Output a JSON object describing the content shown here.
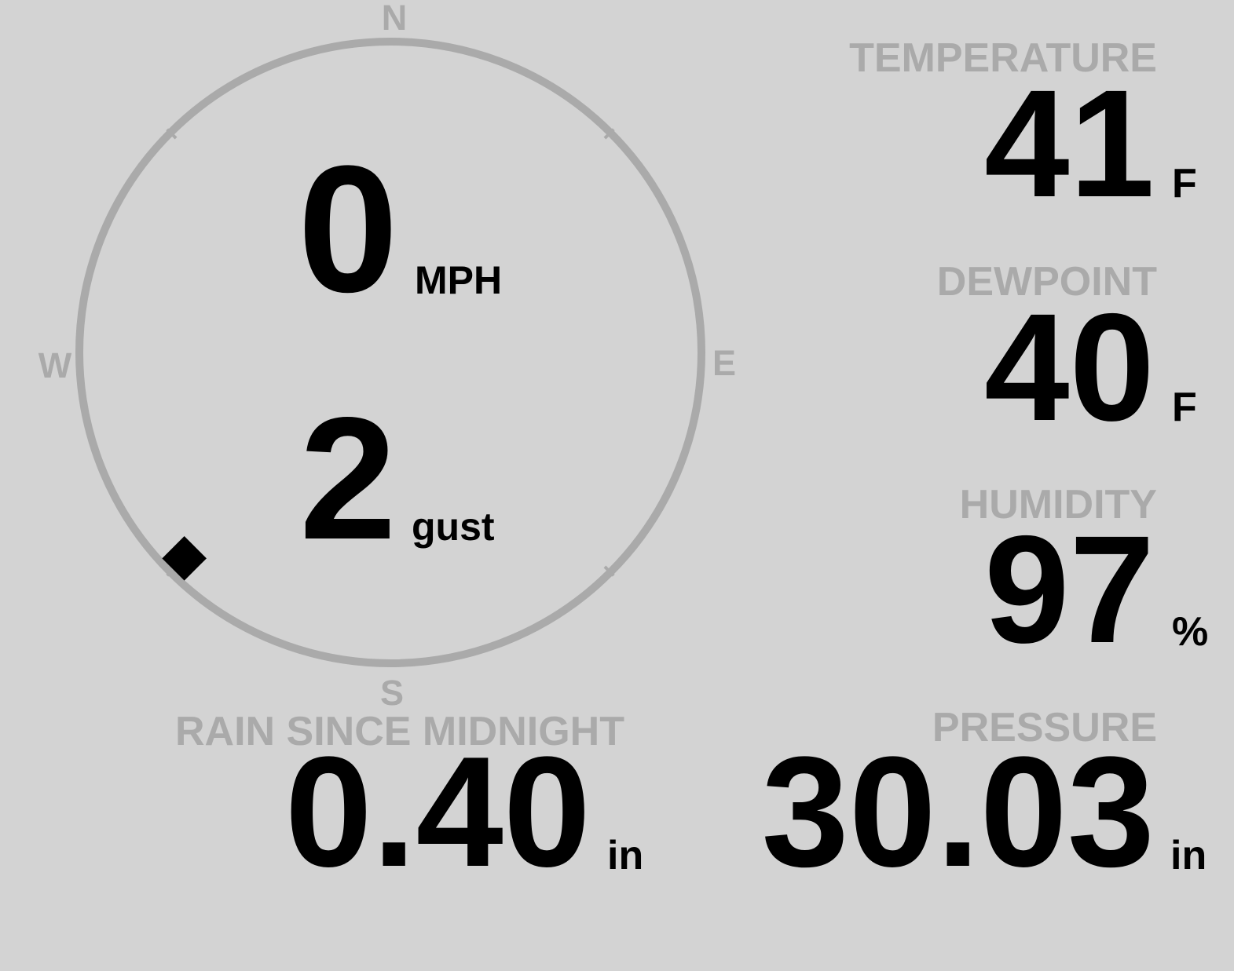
{
  "wind": {
    "speed": "0",
    "speed_unit": "MPH",
    "gust": "2",
    "gust_unit": "gust",
    "direction_degrees": 225,
    "compass": {
      "n": "N",
      "e": "E",
      "s": "S",
      "w": "W"
    }
  },
  "temperature": {
    "label": "TEMPERATURE",
    "value": "41",
    "unit": "F"
  },
  "dewpoint": {
    "label": "DEWPOINT",
    "value": "40",
    "unit": "F"
  },
  "humidity": {
    "label": "HUMIDITY",
    "value": "97",
    "unit": "%"
  },
  "rain": {
    "label": "RAIN SINCE MIDNIGHT",
    "value": "0.40",
    "unit": "in"
  },
  "pressure": {
    "label": "PRESSURE",
    "value": "30.03",
    "unit": "in"
  },
  "colors": {
    "background": "#d3d3d3",
    "label": "#aaaaaa",
    "value": "#000000",
    "dial": "#aaaaaa"
  }
}
